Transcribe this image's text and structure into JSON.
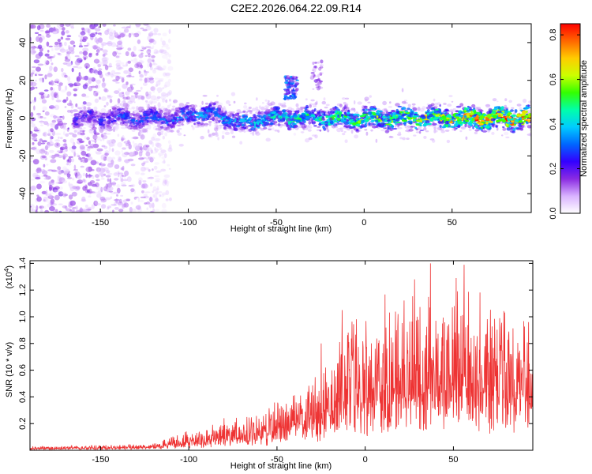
{
  "figure": {
    "title": "C2E2.2026.064.22.09.R14"
  },
  "chart_data": [
    {
      "type": "heatmap",
      "title": "C2E2.2026.064.22.09.R14",
      "xlabel": "Height of straight line (km)",
      "ylabel": "Frequency (Hz)",
      "xlim": [
        -190,
        95
      ],
      "ylim": [
        -50,
        50
      ],
      "xticks": [
        -150,
        -100,
        -50,
        0,
        50
      ],
      "yticks": [
        -40,
        -20,
        0,
        20,
        40
      ],
      "xtick_labels": [
        "-150",
        "-100",
        "-50",
        "0",
        "50"
      ],
      "ytick_labels": [
        "-40",
        "-20",
        "0",
        "20",
        "40"
      ],
      "colorbar": {
        "label": "Normalized spectral amplitude",
        "range": [
          0.0,
          0.85
        ],
        "ticks": [
          0.0,
          0.2,
          0.4,
          0.6,
          0.8
        ],
        "tick_labels": [
          "0.0",
          "0.2",
          "0.4",
          "0.6",
          "0.8"
        ],
        "colormap": [
          "#ffffff",
          "#d9b3ff",
          "#8a2be2",
          "#3300ff",
          "#0066ff",
          "#00ccff",
          "#00ffaa",
          "#33ff00",
          "#ccff00",
          "#ffcc00",
          "#ff6600",
          "#ff0000"
        ]
      },
      "features": [
        {
          "name": "broadband noise",
          "x_range": [
            -190,
            -120
          ],
          "y_range": [
            -50,
            50
          ],
          "amplitude": 0.12
        },
        {
          "name": "main Doppler band",
          "x_range": [
            -165,
            95
          ],
          "center_frequency": 0,
          "half_width_hz": 6,
          "amplitude_start": 0.25,
          "amplitude_end": 0.8
        },
        {
          "name": "upper echo",
          "x_range": [
            -45,
            -38
          ],
          "y_range": [
            10,
            22
          ],
          "amplitude": 0.3
        },
        {
          "name": "upper echo 2",
          "x_range": [
            -30,
            -24
          ],
          "y_range": [
            15,
            30
          ],
          "amplitude": 0.15
        }
      ]
    },
    {
      "type": "line",
      "xlabel": "Height of straight line (km)",
      "ylabel": "SNR (10 * v/v)",
      "exponent_label": "(x10",
      "exponent_power": "4",
      "exponent_close": ")",
      "xlim": [
        -190,
        95
      ],
      "ylim": [
        0,
        14200
      ],
      "xticks": [
        -150,
        -100,
        -50,
        0,
        50
      ],
      "xtick_labels": [
        "-150",
        "-100",
        "-50",
        "0",
        "50"
      ],
      "yticks": [
        2000,
        4000,
        6000,
        8000,
        10000,
        12000,
        14000
      ],
      "ytick_labels": [
        "0.2",
        "0.4",
        "0.6",
        "0.8",
        "1.0",
        "1.2",
        "1.4"
      ],
      "series": [
        {
          "name": "SNR",
          "color": "#ee3333",
          "envelope_x": [
            -190,
            -150,
            -120,
            -110,
            -100,
            -80,
            -60,
            -40,
            -30,
            -20,
            -15,
            0,
            20,
            40,
            60,
            80,
            95
          ],
          "envelope_base": [
            100,
            150,
            200,
            400,
            500,
            700,
            1000,
            1600,
            2000,
            2400,
            3000,
            3500,
            3800,
            4000,
            4000,
            3700,
            3500
          ],
          "envelope_peak": [
            300,
            400,
            500,
            1000,
            1400,
            2200,
            3000,
            4200,
            5500,
            6500,
            9500,
            10500,
            11500,
            13000,
            12500,
            11000,
            10000
          ],
          "peaks": [
            {
              "x": 37,
              "y": 14000
            },
            {
              "x": 56,
              "y": 13900
            },
            {
              "x": 28,
              "y": 12800
            },
            {
              "x": -25,
              "y": 8000
            },
            {
              "x": -13,
              "y": 10500
            },
            {
              "x": -80,
              "y": 2400
            }
          ]
        }
      ]
    }
  ]
}
